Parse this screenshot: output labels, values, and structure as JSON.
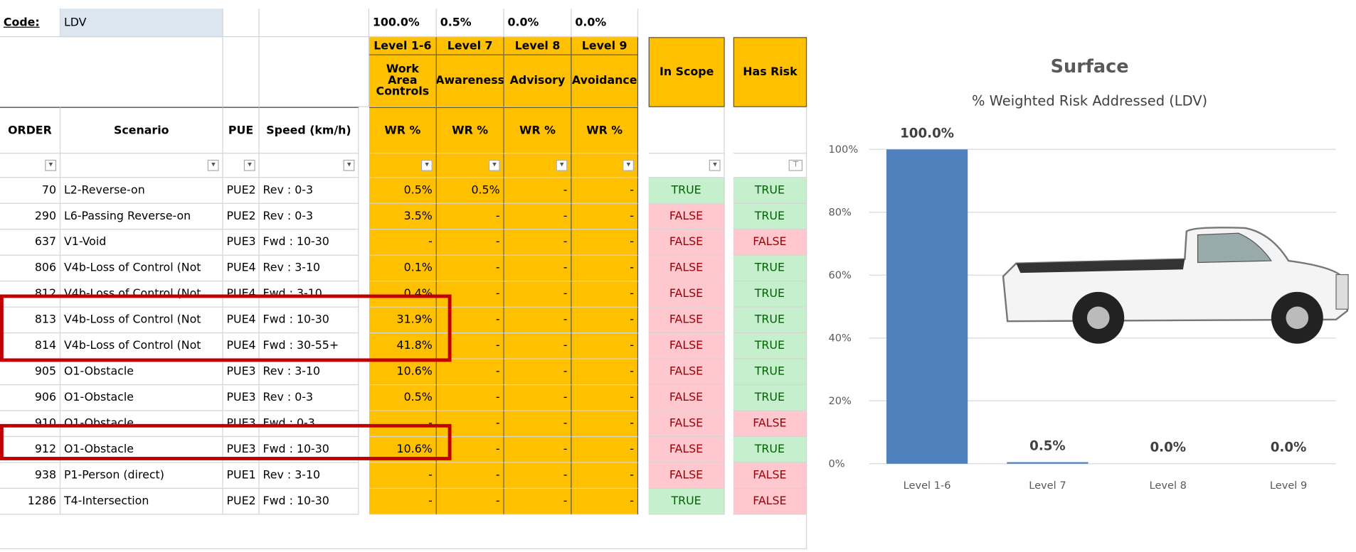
{
  "header": {
    "code_label": "Code:",
    "code": "LDV"
  },
  "level_totals": [
    "100.0%",
    "0.5%",
    "0.0%",
    "0.0%"
  ],
  "levels": [
    "Level 1-6",
    "Level 7",
    "Level 8",
    "Level 9"
  ],
  "level_descriptions": [
    "Work Area Controls",
    "Awareness",
    "Advisory",
    "Avoidance"
  ],
  "in_scope_header": "In Scope",
  "has_risk_header": "Has Risk",
  "table": {
    "columns": [
      "ORDER",
      "Scenario",
      "PUE",
      "Speed (km/h)",
      "WR %",
      "WR %",
      "WR %",
      "WR %"
    ],
    "rows": [
      [
        "70",
        "L2-Reverse-on",
        "PUE2",
        "Rev : 0-3",
        "0.5%",
        "0.5%",
        "-",
        "-",
        "TRUE",
        "TRUE"
      ],
      [
        "290",
        "L6-Passing Reverse-on",
        "PUE2",
        "Rev : 0-3",
        "3.5%",
        "-",
        "-",
        "-",
        "FALSE",
        "TRUE"
      ],
      [
        "637",
        "V1-Void",
        "PUE3",
        "Fwd : 10-30",
        "-",
        "-",
        "-",
        "-",
        "FALSE",
        "FALSE"
      ],
      [
        "806",
        "V4b-Loss of Control (Not",
        "PUE4",
        "Rev : 3-10",
        "0.1%",
        "-",
        "-",
        "-",
        "FALSE",
        "TRUE"
      ],
      [
        "812",
        "V4b-Loss of Control (Not",
        "PUE4",
        "Fwd : 3-10",
        "0.4%",
        "-",
        "-",
        "-",
        "FALSE",
        "TRUE"
      ],
      [
        "813",
        "V4b-Loss of Control (Not",
        "PUE4",
        "Fwd : 10-30",
        "31.9%",
        "-",
        "-",
        "-",
        "FALSE",
        "TRUE"
      ],
      [
        "814",
        "V4b-Loss of Control (Not",
        "PUE4",
        "Fwd : 30-55+",
        "41.8%",
        "-",
        "-",
        "-",
        "FALSE",
        "TRUE"
      ],
      [
        "905",
        "O1-Obstacle",
        "PUE3",
        "Rev : 3-10",
        "10.6%",
        "-",
        "-",
        "-",
        "FALSE",
        "TRUE"
      ],
      [
        "906",
        "O1-Obstacle",
        "PUE3",
        "Rev : 0-3",
        "0.5%",
        "-",
        "-",
        "-",
        "FALSE",
        "TRUE"
      ],
      [
        "910",
        "O1-Obstacle",
        "PUE3",
        "Fwd : 0-3",
        "-",
        "-",
        "-",
        "-",
        "FALSE",
        "FALSE"
      ],
      [
        "912",
        "O1-Obstacle",
        "PUE3",
        "Fwd : 10-30",
        "10.6%",
        "-",
        "-",
        "-",
        "FALSE",
        "TRUE"
      ],
      [
        "938",
        "P1-Person (direct)",
        "PUE1",
        "Rev : 3-10",
        "-",
        "-",
        "-",
        "-",
        "FALSE",
        "FALSE"
      ],
      [
        "1286",
        "T4-Intersection",
        "PUE2",
        "Fwd : 10-30",
        "-",
        "-",
        "-",
        "-",
        "TRUE",
        "FALSE"
      ]
    ]
  },
  "chart_data": {
    "type": "bar",
    "title": "Surface",
    "subtitle": "% Weighted Risk Addressed (LDV)",
    "categories": [
      "Level 1-6",
      "Level 7",
      "Level 8",
      "Level 9"
    ],
    "values": [
      100,
      0.5,
      0,
      0
    ],
    "value_labels": [
      "100.0%",
      "0.5%",
      "0.0%",
      "0.0%"
    ],
    "color": "#4F81BD",
    "ylim": [
      0,
      100
    ],
    "yticks": [
      {
        "value": 0,
        "label": "0%"
      },
      {
        "value": 20,
        "label": "20%"
      },
      {
        "value": 40,
        "label": "40%"
      },
      {
        "value": 60,
        "label": "60%"
      },
      {
        "value": 80,
        "label": "80%"
      },
      {
        "value": 100,
        "label": "100%"
      }
    ],
    "grid": true
  }
}
